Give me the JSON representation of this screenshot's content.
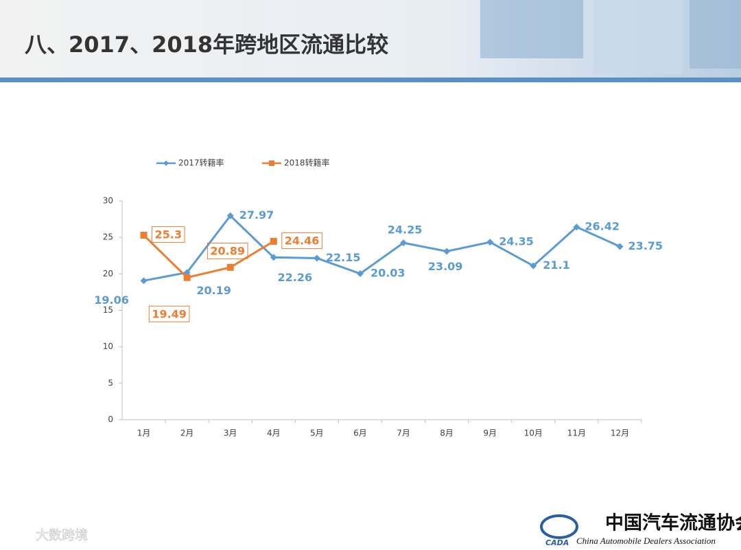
{
  "chart_data": {
    "type": "line",
    "title": "八、2017、2018年跨地区流通比较",
    "categories": [
      "1月",
      "2月",
      "3月",
      "4月",
      "5月",
      "6月",
      "7月",
      "8月",
      "9月",
      "10月",
      "11月",
      "12月"
    ],
    "series": [
      {
        "name": "2017转籍率",
        "color": "#5b9bd5",
        "values": [
          19.06,
          20.19,
          27.97,
          22.26,
          22.15,
          20.03,
          24.25,
          23.09,
          24.35,
          21.1,
          26.42,
          23.75
        ]
      },
      {
        "name": "2018转籍率",
        "color": "#ed7d31",
        "values": [
          25.3,
          19.49,
          20.89,
          24.46,
          null,
          null,
          null,
          null,
          null,
          null,
          null,
          null
        ]
      }
    ],
    "ylim": [
      0,
      30
    ],
    "yticks": [
      0,
      5,
      10,
      15,
      20,
      25,
      30
    ],
    "grid": false,
    "legend": "top-left"
  },
  "logo": {
    "name": "中国汽车流通协会",
    "english": "China Automobile Dealers Association",
    "abbr": "CADA"
  },
  "watermark": "大数跨境"
}
